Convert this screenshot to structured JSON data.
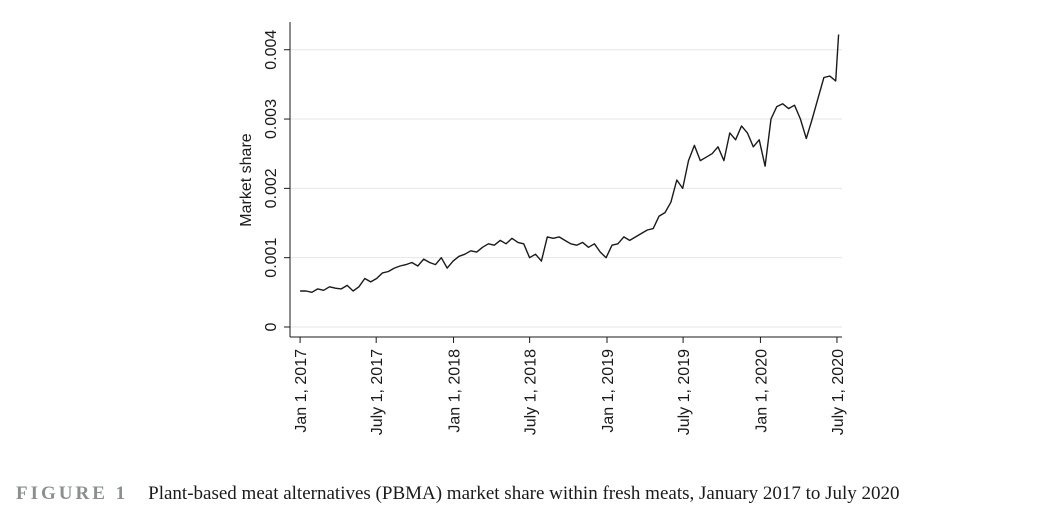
{
  "chart_data": {
    "type": "line",
    "ylabel": "Market share",
    "xlabel": "",
    "ylim": [
      0,
      0.0044
    ],
    "yticks": [
      "0",
      "0.001",
      "0.002",
      "0.003",
      "0.004"
    ],
    "ytick_values": [
      0,
      0.001,
      0.002,
      0.003,
      0.004
    ],
    "xticks": [
      "Jan 1, 2017",
      "July 1, 2017",
      "Jan 1, 2018",
      "July 1, 2018",
      "Jan 1, 2019",
      "July 1, 2019",
      "Jan 1, 2020",
      "July 1, 2020"
    ],
    "xtick_dates": [
      "2017-01-01",
      "2017-07-01",
      "2018-01-01",
      "2018-07-01",
      "2019-01-01",
      "2019-07-01",
      "2020-01-01",
      "2020-07-01"
    ],
    "xlim": [
      "2016-12-08",
      "2020-07-13"
    ],
    "grid": true,
    "series": [
      {
        "x": [
          "2017-01-01",
          "2017-01-15",
          "2017-01-29",
          "2017-02-12",
          "2017-02-26",
          "2017-03-12",
          "2017-03-26",
          "2017-04-09",
          "2017-04-23",
          "2017-05-07",
          "2017-05-21",
          "2017-06-04",
          "2017-06-18",
          "2017-07-02",
          "2017-07-16",
          "2017-07-30",
          "2017-08-13",
          "2017-08-27",
          "2017-09-10",
          "2017-09-24",
          "2017-10-08",
          "2017-10-22",
          "2017-11-05",
          "2017-11-19",
          "2017-12-03",
          "2017-12-17",
          "2017-12-31",
          "2018-01-14",
          "2018-01-28",
          "2018-02-11",
          "2018-02-25",
          "2018-03-11",
          "2018-03-25",
          "2018-04-08",
          "2018-04-22",
          "2018-05-06",
          "2018-05-20",
          "2018-06-03",
          "2018-06-17",
          "2018-07-01",
          "2018-07-15",
          "2018-07-29",
          "2018-08-12",
          "2018-08-26",
          "2018-09-09",
          "2018-09-23",
          "2018-10-07",
          "2018-10-21",
          "2018-11-04",
          "2018-11-18",
          "2018-12-02",
          "2018-12-16",
          "2018-12-30",
          "2019-01-13",
          "2019-01-27",
          "2019-02-10",
          "2019-02-24",
          "2019-03-10",
          "2019-03-24",
          "2019-04-07",
          "2019-04-21",
          "2019-05-05",
          "2019-05-19",
          "2019-06-02",
          "2019-06-16",
          "2019-06-30",
          "2019-07-14",
          "2019-07-28",
          "2019-08-11",
          "2019-08-25",
          "2019-09-08",
          "2019-09-22",
          "2019-10-06",
          "2019-10-20",
          "2019-11-03",
          "2019-11-17",
          "2019-12-01",
          "2019-12-15",
          "2019-12-29",
          "2020-01-12",
          "2020-01-26",
          "2020-02-09",
          "2020-02-23",
          "2020-03-08",
          "2020-03-22",
          "2020-04-05",
          "2020-04-19",
          "2020-05-03",
          "2020-05-17",
          "2020-05-31",
          "2020-06-14",
          "2020-06-28",
          "2020-07-05"
        ],
        "y": [
          0.00052,
          0.00052,
          0.0005,
          0.00055,
          0.00053,
          0.00058,
          0.00056,
          0.00055,
          0.0006,
          0.00052,
          0.00058,
          0.0007,
          0.00065,
          0.0007,
          0.00078,
          0.0008,
          0.00085,
          0.00088,
          0.0009,
          0.00093,
          0.00088,
          0.00098,
          0.00093,
          0.0009,
          0.001,
          0.00085,
          0.00095,
          0.00102,
          0.00105,
          0.0011,
          0.00108,
          0.00115,
          0.0012,
          0.00118,
          0.00125,
          0.0012,
          0.00128,
          0.00122,
          0.0012,
          0.001,
          0.00105,
          0.00095,
          0.0013,
          0.00128,
          0.0013,
          0.00125,
          0.0012,
          0.00118,
          0.00122,
          0.00115,
          0.0012,
          0.00108,
          0.001,
          0.00118,
          0.0012,
          0.0013,
          0.00125,
          0.0013,
          0.00135,
          0.0014,
          0.00142,
          0.0016,
          0.00165,
          0.0018,
          0.00212,
          0.002,
          0.0024,
          0.00262,
          0.0024,
          0.00245,
          0.0025,
          0.0026,
          0.0024,
          0.0028,
          0.0027,
          0.0029,
          0.0028,
          0.0026,
          0.0027,
          0.00232,
          0.003,
          0.00318,
          0.00322,
          0.00315,
          0.0032,
          0.003,
          0.00272,
          0.003,
          0.0033,
          0.0036,
          0.00362,
          0.00355,
          0.00422
        ]
      }
    ]
  },
  "caption": {
    "label": "FIGURE 1",
    "text": "Plant-based meat alternatives (PBMA) market share within fresh meats, January 2017 to July 2020"
  }
}
